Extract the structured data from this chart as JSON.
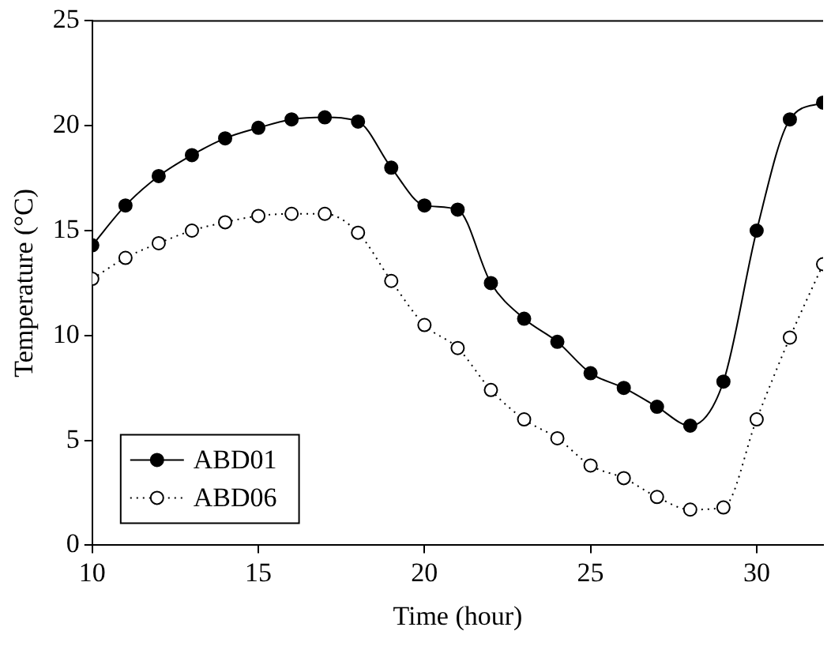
{
  "chart_data": {
    "type": "line",
    "xlabel": "Time (hour)",
    "ylabel": "Temperature (°C)",
    "x": [
      10,
      11,
      12,
      13,
      14,
      15,
      16,
      17,
      18,
      19,
      20,
      21,
      22,
      23,
      24,
      25,
      26,
      27,
      28,
      29,
      30,
      31,
      32
    ],
    "series": [
      {
        "name": "ABD01",
        "color": "#000000",
        "line_style": "solid",
        "values": [
          14.3,
          16.2,
          17.6,
          18.6,
          19.4,
          19.9,
          20.3,
          20.4,
          20.2,
          18.0,
          16.2,
          16.0,
          12.5,
          10.8,
          9.7,
          8.2,
          7.5,
          6.6,
          5.7,
          7.8,
          15.0,
          20.3,
          21.1
        ]
      },
      {
        "name": "ABD06",
        "color": "#000000",
        "line_style": "dotted",
        "values": [
          12.7,
          13.7,
          14.4,
          15.0,
          15.4,
          15.7,
          15.8,
          15.8,
          14.9,
          12.6,
          10.5,
          9.4,
          7.4,
          6.0,
          5.1,
          3.8,
          3.2,
          2.3,
          1.7,
          1.8,
          6.0,
          9.9,
          13.4
        ]
      }
    ],
    "xlim": [
      10,
      32
    ],
    "xticks": [
      10,
      15,
      20,
      25,
      30
    ],
    "ylim": [
      0,
      25
    ],
    "yticks": [
      0,
      5,
      10,
      15,
      20,
      25
    ],
    "grid": false,
    "legend": "bottom left",
    "marker": "circle"
  }
}
